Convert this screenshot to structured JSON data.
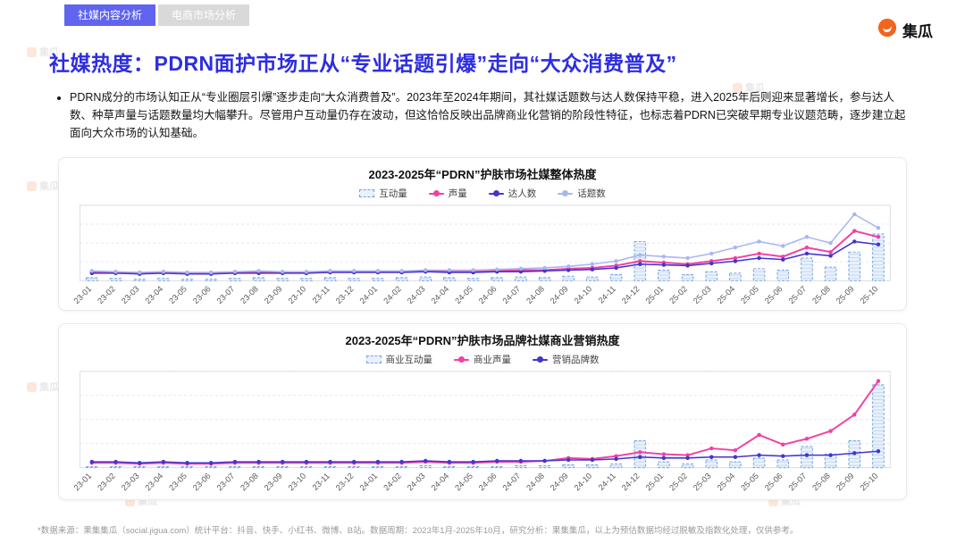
{
  "tabs": [
    {
      "label": "社媒内容分析",
      "active": true
    },
    {
      "label": "电商市场分析",
      "active": false
    }
  ],
  "logo": {
    "text": "集瓜",
    "brand_color": "#f3641e"
  },
  "title": "社媒热度：PDRN面护市场正从“专业话题引爆”走向“大众消费普及”",
  "bullet": "PDRN成分的市场认知正从“专业圈层引爆”逐步走向“大众消费普及”。2023年至2024年期间，其社媒话题数与达人数保持平稳，进入2025年后则迎来显著增长，参与达人数、种草声量与话题数量均大幅攀升。尽管用户互动量仍存在波动，但这恰恰反映出品牌商业化营销的阶段性特征，也标志着PDRN已突破早期专业议题范畴，逐步建立起面向大众市场的认知基础。",
  "footer": "*数据来源：果集集瓜（social.jigua.com）统计平台：抖音、快手、小红书、微博、B站。数据周期：2023年1月-2025年10月，研究分析：果集集瓜，以上为预估数据均经过脱敏及指数化处理，仅供参考。",
  "colors": {
    "title_blue": "#2d2de0",
    "tab_purple": "#6064ee",
    "pink": "#f23fa4",
    "indigo": "#4434cf",
    "periwinkle": "#a9b6f2",
    "bar_stroke": "#74a3de",
    "bar_fill": "#e9f1fb"
  },
  "chart_data": [
    {
      "type": "combo",
      "title": "2023-2025年“PDRN”护肤市场社媒整体热度",
      "ylim": [
        0,
        100
      ],
      "grid": true,
      "legend_position": "top",
      "categories": [
        "23-01",
        "23-02",
        "23-03",
        "23-04",
        "23-05",
        "23-06",
        "23-07",
        "23-08",
        "23-09",
        "23-10",
        "23-11",
        "23-12",
        "24-01",
        "24-02",
        "24-03",
        "24-04",
        "24-05",
        "24-06",
        "24-07",
        "24-08",
        "24-09",
        "24-10",
        "24-11",
        "24-12",
        "25-01",
        "25-02",
        "25-03",
        "25-04",
        "25-05",
        "25-06",
        "25-07",
        "25-08",
        "25-09",
        "25-10"
      ],
      "series": [
        {
          "name": "互动量",
          "type": "bar",
          "color": "#74a3de",
          "fill": "#e9f1fb",
          "values": [
            4,
            3,
            2,
            3,
            2,
            2,
            3,
            4,
            3,
            3,
            4,
            3,
            3,
            4,
            5,
            4,
            3,
            4,
            5,
            4,
            6,
            5,
            8,
            52,
            14,
            8,
            12,
            10,
            16,
            14,
            30,
            18,
            38,
            62
          ]
        },
        {
          "name": "声量",
          "type": "line",
          "color": "#f23fa4",
          "values": [
            12,
            11,
            10,
            11,
            10,
            10,
            11,
            12,
            11,
            11,
            12,
            12,
            12,
            12,
            13,
            12,
            12,
            13,
            14,
            14,
            16,
            17,
            20,
            26,
            24,
            22,
            26,
            30,
            36,
            32,
            44,
            38,
            66,
            58
          ]
        },
        {
          "name": "达人数",
          "type": "line",
          "color": "#4434cf",
          "values": [
            10,
            10,
            9,
            10,
            9,
            9,
            10,
            10,
            10,
            10,
            11,
            11,
            11,
            11,
            12,
            11,
            11,
            12,
            12,
            13,
            14,
            15,
            17,
            22,
            21,
            20,
            23,
            26,
            30,
            28,
            36,
            33,
            52,
            48
          ]
        },
        {
          "name": "话题数",
          "type": "line",
          "color": "#a9b6f2",
          "values": [
            13,
            12,
            11,
            12,
            11,
            11,
            12,
            13,
            12,
            12,
            13,
            13,
            13,
            13,
            14,
            14,
            14,
            15,
            16,
            17,
            19,
            22,
            26,
            34,
            32,
            30,
            36,
            44,
            52,
            46,
            58,
            50,
            88,
            70
          ]
        }
      ]
    },
    {
      "type": "combo",
      "title": "2023-2025年“PDRN”护肤市场品牌社媒商业营销热度",
      "ylim": [
        0,
        100
      ],
      "grid": true,
      "legend_position": "top",
      "categories": [
        "23-01",
        "23-02",
        "23-03",
        "23-04",
        "23-05",
        "23-06",
        "23-07",
        "23-08",
        "23-09",
        "23-10",
        "23-11",
        "23-12",
        "24-01",
        "24-02",
        "24-03",
        "24-04",
        "24-05",
        "24-06",
        "24-07",
        "24-08",
        "24-09",
        "24-10",
        "24-11",
        "24-12",
        "25-01",
        "25-02",
        "25-03",
        "25-04",
        "25-05",
        "25-06",
        "25-07",
        "25-08",
        "25-09",
        "25-10"
      ],
      "series": [
        {
          "name": "商业互动量",
          "type": "bar",
          "color": "#74a3de",
          "fill": "#e9f1fb",
          "values": [
            1,
            1,
            1,
            1,
            1,
            1,
            1,
            1,
            1,
            1,
            1,
            1,
            1,
            1,
            2,
            1,
            1,
            1,
            2,
            2,
            3,
            3,
            4,
            28,
            6,
            4,
            8,
            6,
            10,
            8,
            22,
            14,
            28,
            86
          ]
        },
        {
          "name": "商业声量",
          "type": "line",
          "color": "#f23fa4",
          "values": [
            5,
            5,
            4,
            5,
            4,
            4,
            5,
            5,
            5,
            5,
            5,
            5,
            5,
            5,
            6,
            5,
            5,
            6,
            6,
            7,
            10,
            9,
            12,
            16,
            14,
            13,
            20,
            18,
            34,
            24,
            30,
            38,
            55,
            90
          ]
        },
        {
          "name": "营销品牌数",
          "type": "line",
          "color": "#4434cf",
          "values": [
            6,
            6,
            5,
            6,
            5,
            5,
            6,
            6,
            6,
            6,
            6,
            6,
            6,
            6,
            7,
            6,
            6,
            7,
            7,
            7,
            8,
            8,
            9,
            11,
            10,
            10,
            11,
            11,
            13,
            12,
            13,
            13,
            15,
            17
          ]
        }
      ]
    }
  ]
}
